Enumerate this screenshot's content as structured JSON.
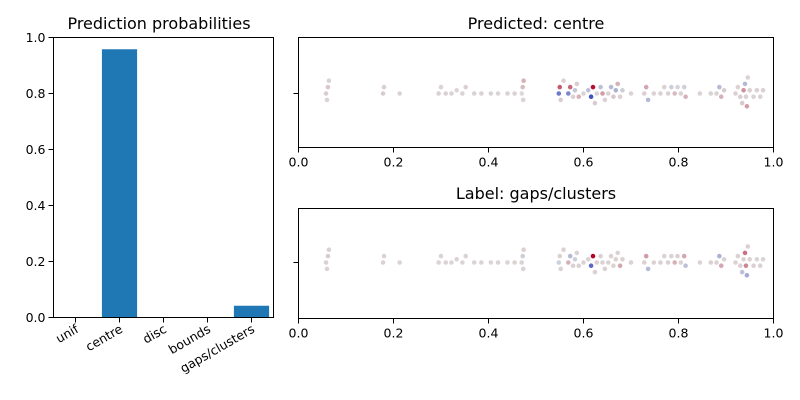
{
  "chart_data": [
    {
      "type": "bar",
      "title": "Prediction probabilities",
      "categories": [
        "unif",
        "centre",
        "disc",
        "bounds",
        "gaps/clusters"
      ],
      "values": [
        0.0,
        0.958,
        0.0,
        0.0,
        0.042
      ],
      "ylim": [
        0,
        1
      ],
      "yticks": [
        "0.0",
        "0.2",
        "0.4",
        "0.6",
        "0.8",
        "1.0"
      ],
      "bar_color": "#1f77b4"
    },
    {
      "type": "scatter",
      "title": "Predicted: centre",
      "xlim": [
        0,
        1
      ],
      "xticks": [
        "0.0",
        "0.2",
        "0.4",
        "0.6",
        "0.8",
        "1.0"
      ],
      "colormap": "coolwarm",
      "points": [
        {
          "x": 0.058,
          "s": 0.08
        },
        {
          "x": 0.062,
          "s": 0.1
        },
        {
          "x": 0.06,
          "s": 0.05
        },
        {
          "x": 0.064,
          "s": 0.06
        },
        {
          "x": 0.178,
          "s": 0.08
        },
        {
          "x": 0.18,
          "s": 0.07
        },
        {
          "x": 0.213,
          "s": 0.05
        },
        {
          "x": 0.295,
          "s": 0.06
        },
        {
          "x": 0.3,
          "s": 0.05
        },
        {
          "x": 0.31,
          "s": 0.06
        },
        {
          "x": 0.322,
          "s": 0.05
        },
        {
          "x": 0.333,
          "s": 0.04
        },
        {
          "x": 0.345,
          "s": 0.05
        },
        {
          "x": 0.352,
          "s": 0.06
        },
        {
          "x": 0.37,
          "s": 0.05
        },
        {
          "x": 0.385,
          "s": 0.06
        },
        {
          "x": 0.405,
          "s": 0.05
        },
        {
          "x": 0.42,
          "s": 0.04
        },
        {
          "x": 0.44,
          "s": 0.05
        },
        {
          "x": 0.455,
          "s": 0.06
        },
        {
          "x": 0.47,
          "s": 0.02
        },
        {
          "x": 0.472,
          "s": 0.15
        },
        {
          "x": 0.473,
          "s": 0.05
        },
        {
          "x": 0.474,
          "s": 0.2
        },
        {
          "x": 0.548,
          "s": -0.7
        },
        {
          "x": 0.55,
          "s": 0.6
        },
        {
          "x": 0.552,
          "s": 0.08
        },
        {
          "x": 0.558,
          "s": 0.06
        },
        {
          "x": 0.568,
          "s": -0.6
        },
        {
          "x": 0.572,
          "s": 0.55
        },
        {
          "x": 0.578,
          "s": 0.06
        },
        {
          "x": 0.582,
          "s": -0.15
        },
        {
          "x": 0.586,
          "s": 0.08
        },
        {
          "x": 0.59,
          "s": 0.2
        },
        {
          "x": 0.6,
          "s": 0.05
        },
        {
          "x": 0.61,
          "s": -0.2
        },
        {
          "x": 0.616,
          "s": -0.95
        },
        {
          "x": 0.62,
          "s": 0.95
        },
        {
          "x": 0.624,
          "s": 0.08
        },
        {
          "x": 0.628,
          "s": 0.05
        },
        {
          "x": 0.636,
          "s": -0.2
        },
        {
          "x": 0.64,
          "s": 0.3
        },
        {
          "x": 0.645,
          "s": 0.06
        },
        {
          "x": 0.652,
          "s": 0.05
        },
        {
          "x": 0.658,
          "s": -0.25
        },
        {
          "x": 0.663,
          "s": 0.1
        },
        {
          "x": 0.668,
          "s": -0.3
        },
        {
          "x": 0.672,
          "s": 0.2
        },
        {
          "x": 0.677,
          "s": 0.06
        },
        {
          "x": 0.682,
          "s": -0.1
        },
        {
          "x": 0.7,
          "s": 0.05
        },
        {
          "x": 0.728,
          "s": 0.06
        },
        {
          "x": 0.732,
          "s": 0.25
        },
        {
          "x": 0.736,
          "s": -0.25
        },
        {
          "x": 0.748,
          "s": 0.05
        },
        {
          "x": 0.762,
          "s": 0.06
        },
        {
          "x": 0.77,
          "s": 0.05
        },
        {
          "x": 0.778,
          "s": 0.06
        },
        {
          "x": 0.785,
          "s": -0.1
        },
        {
          "x": 0.792,
          "s": 0.15
        },
        {
          "x": 0.798,
          "s": 0.05
        },
        {
          "x": 0.805,
          "s": 0.06
        },
        {
          "x": 0.812,
          "s": -0.1
        },
        {
          "x": 0.815,
          "s": 0.2
        },
        {
          "x": 0.845,
          "s": 0.05
        },
        {
          "x": 0.868,
          "s": 0.06
        },
        {
          "x": 0.88,
          "s": 0.05
        },
        {
          "x": 0.886,
          "s": -0.25
        },
        {
          "x": 0.89,
          "s": 0.2
        },
        {
          "x": 0.896,
          "s": 0.08
        },
        {
          "x": 0.92,
          "s": 0.06
        },
        {
          "x": 0.925,
          "s": 0.05
        },
        {
          "x": 0.93,
          "s": 0.07
        },
        {
          "x": 0.934,
          "s": 0.1
        },
        {
          "x": 0.937,
          "s": 0.35
        },
        {
          "x": 0.94,
          "s": -0.25
        },
        {
          "x": 0.942,
          "s": 0.06
        },
        {
          "x": 0.944,
          "s": 0.3
        },
        {
          "x": 0.946,
          "s": 0.05
        },
        {
          "x": 0.95,
          "s": 0.06
        },
        {
          "x": 0.958,
          "s": 0.05
        },
        {
          "x": 0.965,
          "s": 0.06
        },
        {
          "x": 0.972,
          "s": 0.05
        },
        {
          "x": 0.978,
          "s": 0.06
        }
      ]
    },
    {
      "type": "scatter",
      "title": "Label: gaps/clusters",
      "xlim": [
        0,
        1
      ],
      "xticks": [
        "0.0",
        "0.2",
        "0.4",
        "0.6",
        "0.8",
        "1.0"
      ],
      "colormap": "coolwarm",
      "points": [
        {
          "x": 0.058,
          "s": 0.06
        },
        {
          "x": 0.062,
          "s": 0.08
        },
        {
          "x": 0.06,
          "s": 0.05
        },
        {
          "x": 0.064,
          "s": 0.06
        },
        {
          "x": 0.178,
          "s": 0.06
        },
        {
          "x": 0.18,
          "s": 0.05
        },
        {
          "x": 0.213,
          "s": 0.04
        },
        {
          "x": 0.295,
          "s": 0.05
        },
        {
          "x": 0.3,
          "s": 0.04
        },
        {
          "x": 0.31,
          "s": 0.05
        },
        {
          "x": 0.322,
          "s": 0.04
        },
        {
          "x": 0.333,
          "s": 0.05
        },
        {
          "x": 0.345,
          "s": 0.04
        },
        {
          "x": 0.352,
          "s": 0.05
        },
        {
          "x": 0.37,
          "s": 0.04
        },
        {
          "x": 0.385,
          "s": 0.05
        },
        {
          "x": 0.405,
          "s": 0.04
        },
        {
          "x": 0.42,
          "s": 0.05
        },
        {
          "x": 0.44,
          "s": 0.04
        },
        {
          "x": 0.455,
          "s": 0.05
        },
        {
          "x": 0.47,
          "s": 0.04
        },
        {
          "x": 0.472,
          "s": -0.1
        },
        {
          "x": 0.473,
          "s": 0.05
        },
        {
          "x": 0.474,
          "s": 0.06
        },
        {
          "x": 0.548,
          "s": -0.1
        },
        {
          "x": 0.55,
          "s": 0.06
        },
        {
          "x": 0.552,
          "s": 0.05
        },
        {
          "x": 0.558,
          "s": 0.05
        },
        {
          "x": 0.568,
          "s": 0.2
        },
        {
          "x": 0.572,
          "s": -0.25
        },
        {
          "x": 0.578,
          "s": 0.06
        },
        {
          "x": 0.582,
          "s": -0.1
        },
        {
          "x": 0.586,
          "s": 0.05
        },
        {
          "x": 0.59,
          "s": 0.06
        },
        {
          "x": 0.6,
          "s": 0.05
        },
        {
          "x": 0.61,
          "s": 0.06
        },
        {
          "x": 0.616,
          "s": -0.8
        },
        {
          "x": 0.62,
          "s": 1.0
        },
        {
          "x": 0.624,
          "s": 0.06
        },
        {
          "x": 0.628,
          "s": 0.05
        },
        {
          "x": 0.636,
          "s": 0.06
        },
        {
          "x": 0.64,
          "s": 0.05
        },
        {
          "x": 0.645,
          "s": 0.06
        },
        {
          "x": 0.652,
          "s": 0.05
        },
        {
          "x": 0.658,
          "s": 0.06
        },
        {
          "x": 0.663,
          "s": 0.05
        },
        {
          "x": 0.668,
          "s": 0.06
        },
        {
          "x": 0.672,
          "s": 0.05
        },
        {
          "x": 0.677,
          "s": 0.25
        },
        {
          "x": 0.682,
          "s": 0.06
        },
        {
          "x": 0.7,
          "s": 0.05
        },
        {
          "x": 0.728,
          "s": 0.06
        },
        {
          "x": 0.732,
          "s": 0.3
        },
        {
          "x": 0.736,
          "s": -0.25
        },
        {
          "x": 0.748,
          "s": 0.05
        },
        {
          "x": 0.762,
          "s": 0.06
        },
        {
          "x": 0.77,
          "s": 0.05
        },
        {
          "x": 0.778,
          "s": 0.06
        },
        {
          "x": 0.785,
          "s": 0.05
        },
        {
          "x": 0.792,
          "s": 0.2
        },
        {
          "x": 0.798,
          "s": 0.06
        },
        {
          "x": 0.805,
          "s": 0.05
        },
        {
          "x": 0.812,
          "s": 0.25
        },
        {
          "x": 0.815,
          "s": -0.2
        },
        {
          "x": 0.845,
          "s": 0.05
        },
        {
          "x": 0.868,
          "s": 0.06
        },
        {
          "x": 0.88,
          "s": 0.05
        },
        {
          "x": 0.886,
          "s": -0.3
        },
        {
          "x": 0.89,
          "s": 0.25
        },
        {
          "x": 0.896,
          "s": 0.06
        },
        {
          "x": 0.92,
          "s": 0.05
        },
        {
          "x": 0.925,
          "s": 0.06
        },
        {
          "x": 0.93,
          "s": 0.05
        },
        {
          "x": 0.934,
          "s": -0.2
        },
        {
          "x": 0.937,
          "s": 0.06
        },
        {
          "x": 0.94,
          "s": 0.5
        },
        {
          "x": 0.942,
          "s": 0.4
        },
        {
          "x": 0.944,
          "s": -0.35
        },
        {
          "x": 0.946,
          "s": 0.06
        },
        {
          "x": 0.95,
          "s": 0.05
        },
        {
          "x": 0.958,
          "s": 0.06
        },
        {
          "x": 0.965,
          "s": 0.05
        },
        {
          "x": 0.972,
          "s": 0.06
        },
        {
          "x": 0.978,
          "s": 0.05
        }
      ]
    }
  ]
}
